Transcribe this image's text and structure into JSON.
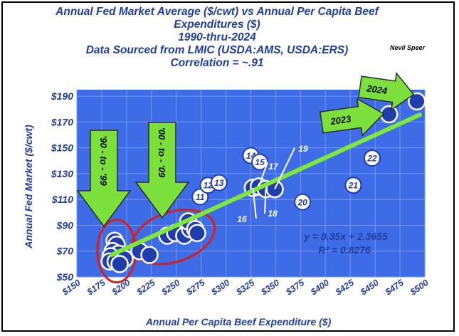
{
  "chart_data": {
    "type": "scatter",
    "title_lines": [
      "Annual Fed Market Average ($/cwt) vs Annual Per Capita Beef",
      "Expenditures ($)",
      "1990-thru-2024",
      "Data Sourced from LMIC (USDA:AMS, USDA:ERS)",
      "Correlation = ~.91"
    ],
    "author": "Nevil Speer",
    "xlabel": "Annual Per Capita Beef Expenditure ($)",
    "ylabel": "Annual Fed Market ($/cwt)",
    "xlim": [
      150,
      500
    ],
    "ylim": [
      50,
      195
    ],
    "x_ticks": [
      150,
      175,
      200,
      225,
      250,
      275,
      300,
      325,
      350,
      375,
      400,
      425,
      450,
      475,
      500
    ],
    "x_tick_labels": [
      "$150",
      "$175",
      "$200",
      "$225",
      "$250",
      "$275",
      "$300",
      "$325",
      "$350",
      "$375",
      "$400",
      "$425",
      "$450",
      "$475",
      "$500"
    ],
    "y_ticks": [
      50,
      70,
      90,
      110,
      130,
      150,
      170,
      190
    ],
    "y_tick_labels": [
      "$50",
      "$70",
      "$90",
      "$110",
      "$130",
      "$150",
      "$170",
      "$190"
    ],
    "points": [
      {
        "x": 188,
        "y": 78,
        "label": ""
      },
      {
        "x": 190,
        "y": 75,
        "label": ""
      },
      {
        "x": 186,
        "y": 70,
        "label": ""
      },
      {
        "x": 192,
        "y": 68,
        "label": ""
      },
      {
        "x": 184,
        "y": 66,
        "label": ""
      },
      {
        "x": 196,
        "y": 65,
        "label": ""
      },
      {
        "x": 183,
        "y": 62,
        "label": ""
      },
      {
        "x": 189,
        "y": 62,
        "label": ""
      },
      {
        "x": 198,
        "y": 64,
        "label": ""
      },
      {
        "x": 193,
        "y": 60,
        "label": ""
      },
      {
        "x": 213,
        "y": 70,
        "label": ""
      },
      {
        "x": 223,
        "y": 67,
        "label": ""
      },
      {
        "x": 241,
        "y": 82,
        "label": ""
      },
      {
        "x": 249,
        "y": 84,
        "label": ""
      },
      {
        "x": 258,
        "y": 82,
        "label": ""
      },
      {
        "x": 264,
        "y": 87,
        "label": ""
      },
      {
        "x": 262,
        "y": 93,
        "label": ""
      },
      {
        "x": 269,
        "y": 87,
        "label": ""
      },
      {
        "x": 271,
        "y": 84,
        "label": ""
      },
      {
        "x": 274,
        "y": 112,
        "label": "11"
      },
      {
        "x": 282,
        "y": 121,
        "label": "12"
      },
      {
        "x": 293,
        "y": 123,
        "label": "13"
      },
      {
        "x": 325,
        "y": 144,
        "label": "14"
      },
      {
        "x": 334,
        "y": 139,
        "label": "15"
      },
      {
        "x": 327,
        "y": 119,
        "label": ""
      },
      {
        "x": 333,
        "y": 120,
        "label": ""
      },
      {
        "x": 340,
        "y": 118,
        "label": ""
      },
      {
        "x": 349,
        "y": 118,
        "label": ""
      },
      {
        "x": 377,
        "y": 108,
        "label": "20"
      },
      {
        "x": 428,
        "y": 121,
        "label": "21"
      },
      {
        "x": 447,
        "y": 142,
        "label": "22"
      },
      {
        "x": 464,
        "y": 176,
        "label": ""
      },
      {
        "x": 492,
        "y": 186,
        "label": ""
      }
    ],
    "point_leader_labels": [
      "16",
      "17",
      "18",
      "19"
    ],
    "trendline": {
      "x": [
        185,
        495
      ],
      "y": [
        67.1,
        175.6
      ]
    },
    "equation": "y = 0.35x + 2.3655",
    "r_squared": "R² = 0.8276",
    "annotations": [
      "'90 - to - '99",
      "'00 - to - '09",
      "2023",
      "2024"
    ]
  },
  "colors": {
    "plot_bg": "#3d6ce6",
    "grid": "#7598f2",
    "point_fill": "#1f3dad",
    "label_fill": "#ffffff",
    "trend": "#80e83a",
    "arrow": "#7be03c",
    "ellipse": "#d41f1f",
    "text": "#1f3d9e"
  }
}
